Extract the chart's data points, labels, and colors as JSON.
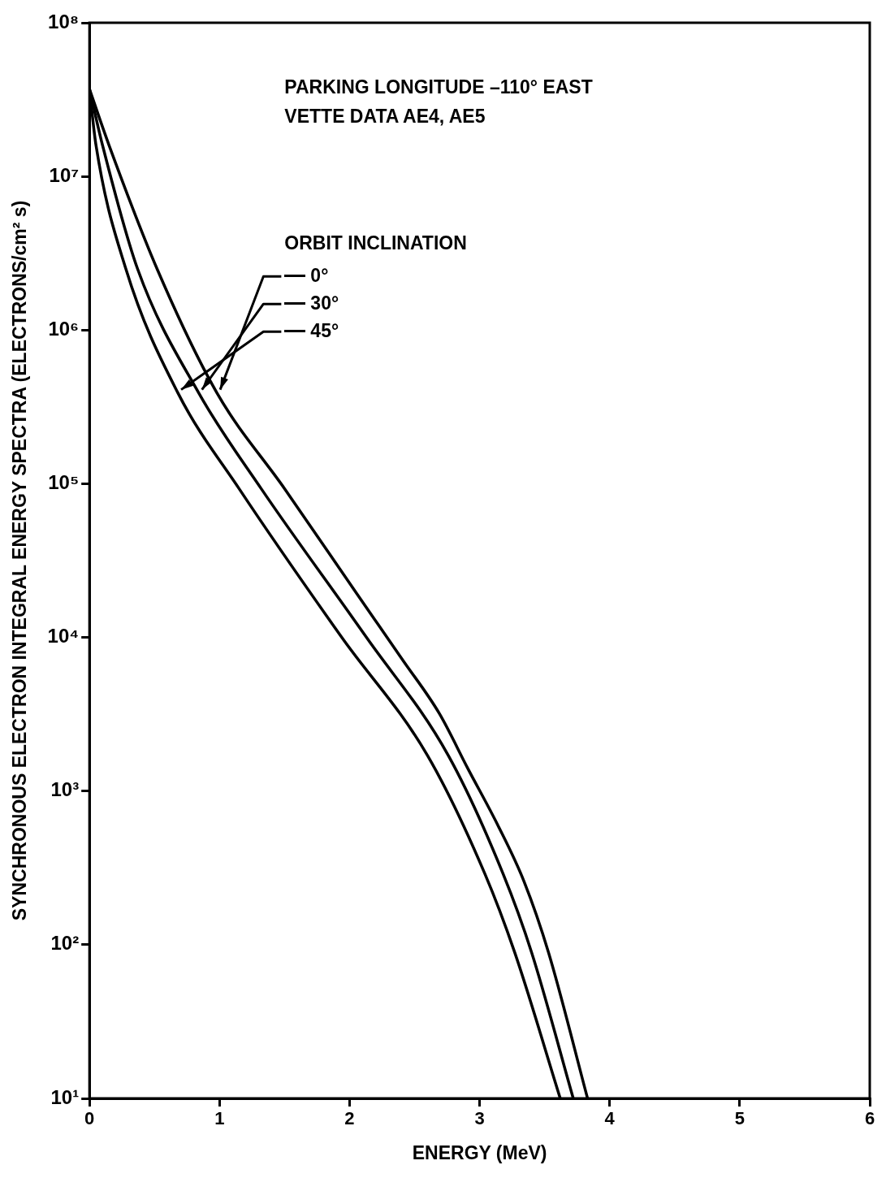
{
  "chart_data": {
    "type": "line",
    "xlabel": "ENERGY (MeV)",
    "ylabel": "SYNCHRONOUS ELECTRON INTEGRAL ENERGY SPECTRA (ELECTRONS/cm² s)",
    "legend_title": "ORBIT INCLINATION",
    "annotations": [
      "PARKING LONGITUDE –110° EAST",
      "VETTE DATA AE4, AE5"
    ],
    "log": "y",
    "grid": false,
    "legend": "top",
    "marker": "none",
    "line_style": "solid",
    "xlim": [
      0,
      6
    ],
    "xticks": [
      0,
      1,
      2,
      3,
      4,
      5,
      6
    ],
    "ylim": [
      10,
      100000000
    ],
    "yticks": [
      {
        "value": 10,
        "label": "10¹"
      },
      {
        "value": 100,
        "label": "10²"
      },
      {
        "value": 1000,
        "label": "10³"
      },
      {
        "value": 10000,
        "label": "10⁴"
      },
      {
        "value": 100000,
        "label": "10⁵"
      },
      {
        "value": 1000000,
        "label": "10⁶"
      },
      {
        "value": 10000000,
        "label": "10⁷"
      },
      {
        "value": 100000000,
        "label": "10⁸"
      }
    ],
    "series": [
      {
        "name": "0°",
        "color": "#000000",
        "x": [
          0,
          0.15,
          0.52,
          0.98,
          1.5,
          2.06,
          2.41,
          2.69,
          2.91,
          3.14,
          3.34,
          3.53,
          3.83
        ],
        "values": [
          37000000,
          16000000,
          2500000,
          390000,
          93000,
          19000,
          7100,
          3200,
          1400,
          600,
          260,
          89,
          10
        ]
      },
      {
        "name": "30°",
        "color": "#000000",
        "x": [
          0,
          0.1,
          0.37,
          0.84,
          1.32,
          2.13,
          2.76,
          3.18,
          3.4,
          3.72
        ],
        "values": [
          37000000,
          16000000,
          2500000,
          390000,
          93000,
          10000,
          1700,
          290,
          89,
          10
        ]
      },
      {
        "name": "45°",
        "color": "#000000",
        "x": [
          0,
          0.05,
          0.28,
          0.68,
          1.15,
          1.94,
          2.6,
          3.04,
          3.27,
          3.62
        ],
        "values": [
          37000000,
          16000000,
          2500000,
          390000,
          93000,
          10000,
          1700,
          290,
          89,
          10
        ]
      }
    ]
  }
}
